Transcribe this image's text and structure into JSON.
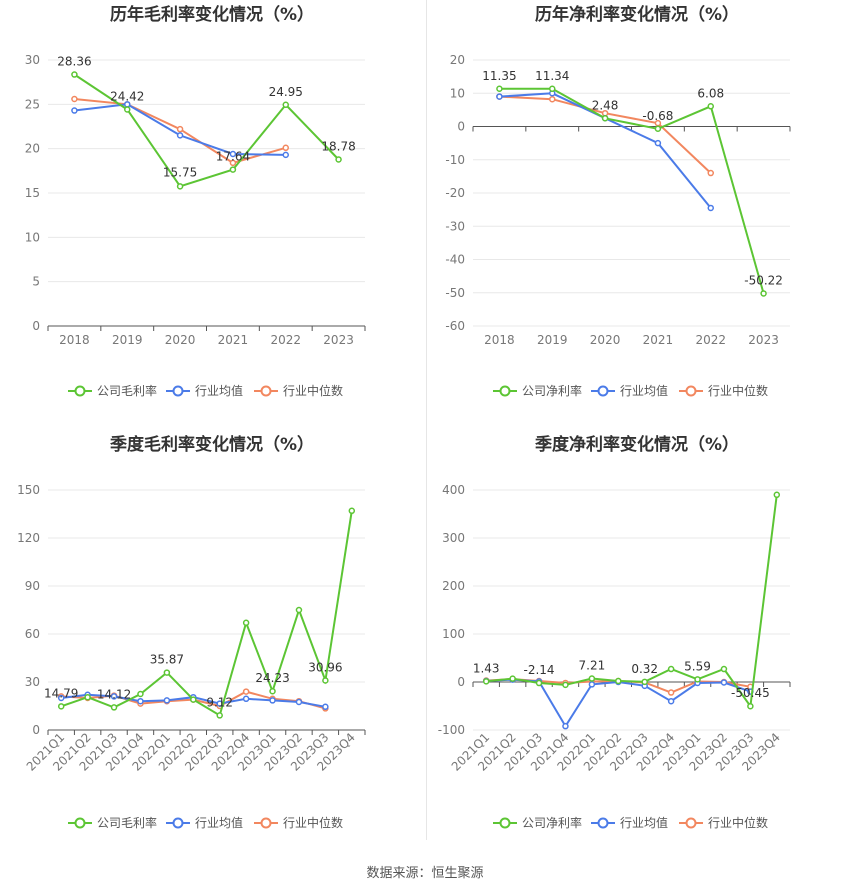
{
  "footer": {
    "source": "数据来源：恒生聚源"
  },
  "colors": {
    "company": "#5cc534",
    "industry_avg": "#4b7be8",
    "industry_median": "#f2875f"
  },
  "chart_data": [
    {
      "id": "annual-gross",
      "type": "line",
      "title": "历年毛利率变化情况（%）",
      "categories": [
        "2018",
        "2019",
        "2020",
        "2021",
        "2022",
        "2023"
      ],
      "ylim": [
        0,
        30
      ],
      "yticks": [
        0,
        5,
        10,
        15,
        20,
        25,
        30
      ],
      "grid": true,
      "rotate_x": false,
      "legend_position": "bottom",
      "series": [
        {
          "name": "公司毛利率",
          "values": [
            28.36,
            24.42,
            15.75,
            17.64,
            24.95,
            18.78
          ]
        },
        {
          "name": "行业均值",
          "values": [
            24.3,
            25.0,
            21.5,
            19.4,
            19.3,
            null
          ]
        },
        {
          "name": "行业中位数",
          "values": [
            25.6,
            25.0,
            22.2,
            18.4,
            20.1,
            null
          ]
        }
      ],
      "labels": [
        "28.36",
        "24.42",
        "15.75",
        "17.64",
        "24.95",
        "18.78"
      ]
    },
    {
      "id": "annual-net",
      "type": "line",
      "title": "历年净利率变化情况（%）",
      "categories": [
        "2018",
        "2019",
        "2020",
        "2021",
        "2022",
        "2023"
      ],
      "ylim": [
        -60,
        20
      ],
      "yticks": [
        -60,
        -50,
        -40,
        -30,
        -20,
        -10,
        0,
        10,
        20
      ],
      "grid": true,
      "rotate_x": false,
      "legend_position": "bottom",
      "series": [
        {
          "name": "公司净利率",
          "values": [
            11.35,
            11.34,
            2.48,
            -0.68,
            6.08,
            -50.22
          ]
        },
        {
          "name": "行业均值",
          "values": [
            9.0,
            10.0,
            2.5,
            -5.0,
            -24.5,
            null
          ]
        },
        {
          "name": "行业中位数",
          "values": [
            9.0,
            8.2,
            4.0,
            1.0,
            -14.0,
            null
          ]
        }
      ],
      "labels": [
        "11.35",
        "11.34",
        "2.48",
        "-0.68",
        "6.08",
        "-50.22"
      ]
    },
    {
      "id": "quarterly-gross",
      "type": "line",
      "title": "季度毛利率变化情况（%）",
      "categories": [
        "2021Q1",
        "2021Q2",
        "2021Q3",
        "2021Q4",
        "2022Q1",
        "2022Q2",
        "2022Q3",
        "2022Q4",
        "2023Q1",
        "2023Q2",
        "2023Q3",
        "2023Q4"
      ],
      "ylim": [
        0,
        150
      ],
      "yticks": [
        0,
        30,
        60,
        90,
        120,
        150
      ],
      "grid": true,
      "rotate_x": true,
      "legend_position": "bottom",
      "series": [
        {
          "name": "公司毛利率",
          "values": [
            14.79,
            20.5,
            14.12,
            22.5,
            35.87,
            19.0,
            9.12,
            67.0,
            24.23,
            75.0,
            30.96,
            137.0
          ]
        },
        {
          "name": "行业均值",
          "values": [
            20.0,
            22.0,
            21.0,
            18.0,
            18.5,
            20.5,
            16.5,
            19.5,
            18.5,
            17.5,
            14.5,
            null
          ]
        },
        {
          "name": "行业中位数",
          "values": [
            21.0,
            20.0,
            21.5,
            16.5,
            18.0,
            19.0,
            15.0,
            24.0,
            19.5,
            18.0,
            13.5,
            null
          ]
        }
      ],
      "labels": [
        "14.79",
        "",
        "14.12",
        "",
        "35.87",
        "",
        "9.12",
        "",
        "24.23",
        "",
        "30.96",
        ""
      ]
    },
    {
      "id": "quarterly-net",
      "type": "line",
      "title": "季度净利率变化情况（%）",
      "categories": [
        "2021Q1",
        "2021Q2",
        "2021Q3",
        "2021Q4",
        "2022Q1",
        "2022Q2",
        "2022Q3",
        "2022Q4",
        "2023Q1",
        "2023Q2",
        "2023Q3",
        "2023Q4"
      ],
      "ylim": [
        -100,
        400
      ],
      "yticks": [
        -100,
        0,
        100,
        200,
        300,
        400
      ],
      "grid": true,
      "rotate_x": true,
      "legend_position": "bottom",
      "series": [
        {
          "name": "公司净利率",
          "values": [
            1.43,
            7.0,
            -2.14,
            -6.0,
            7.21,
            2.0,
            0.32,
            27.0,
            5.59,
            27.0,
            -50.45,
            390.0
          ]
        },
        {
          "name": "行业均值",
          "values": [
            2.0,
            5.0,
            1.0,
            -92.0,
            -5.0,
            0.0,
            -8.0,
            -40.0,
            -2.0,
            -1.0,
            -20.0,
            null
          ]
        },
        {
          "name": "行业中位数",
          "values": [
            3.0,
            6.0,
            2.0,
            -2.0,
            1.0,
            2.0,
            -1.0,
            -22.0,
            1.0,
            0.0,
            -10.0,
            null
          ]
        }
      ],
      "labels": [
        "1.43",
        "",
        "-2.14",
        "",
        "7.21",
        "",
        "0.32",
        "",
        "5.59",
        "",
        "-50.45",
        ""
      ]
    }
  ]
}
